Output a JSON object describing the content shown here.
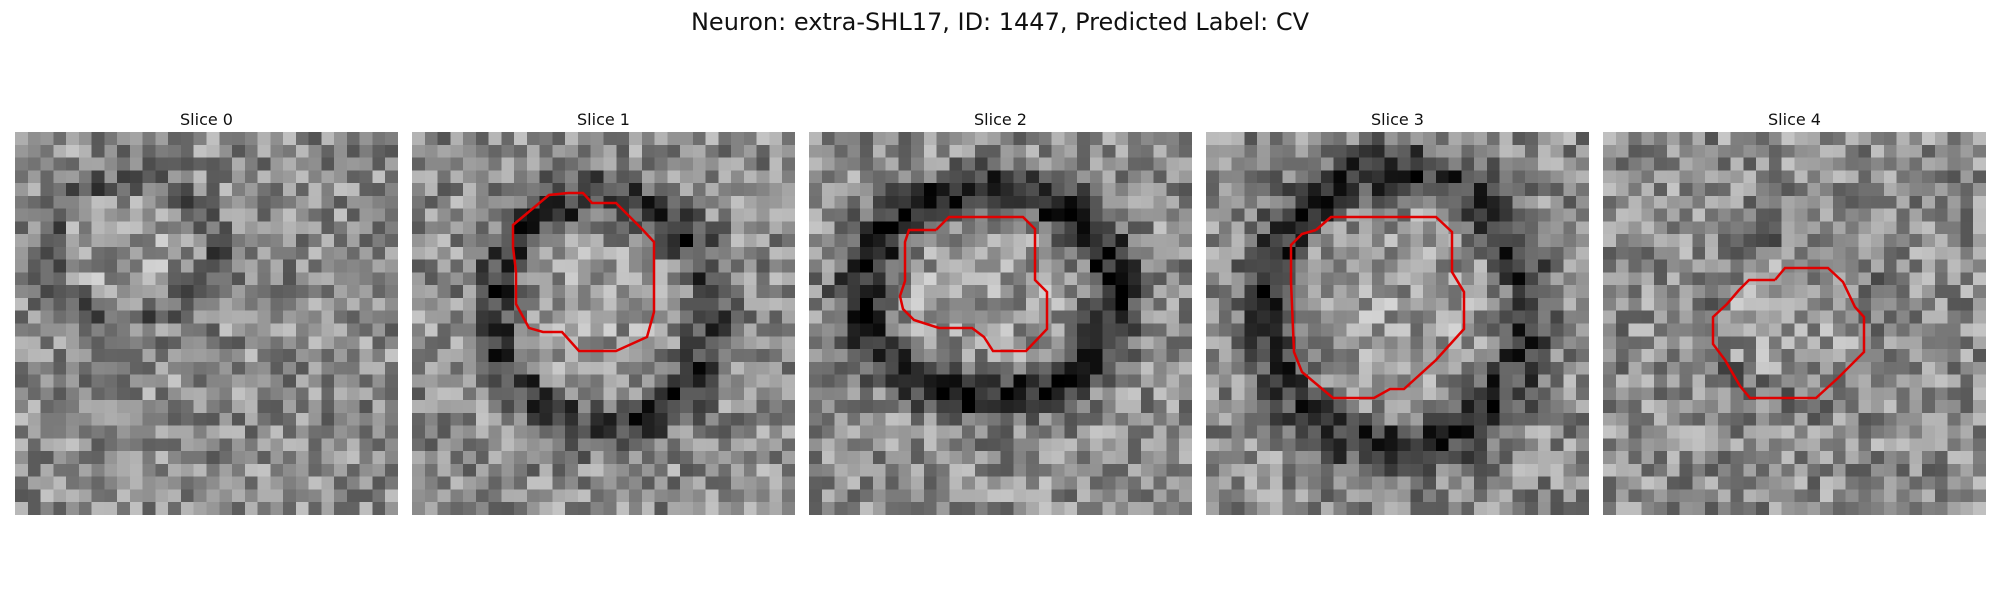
{
  "title": "Neuron: extra-SHL17, ID: 1447, Predicted Label: CV",
  "contour_color": "#e00000",
  "panels": [
    {
      "label": "Slice 0",
      "has_contour": false
    },
    {
      "label": "Slice 1",
      "has_contour": true
    },
    {
      "label": "Slice 2",
      "has_contour": true
    },
    {
      "label": "Slice 3",
      "has_contour": true
    },
    {
      "label": "Slice 4",
      "has_contour": true
    }
  ]
}
